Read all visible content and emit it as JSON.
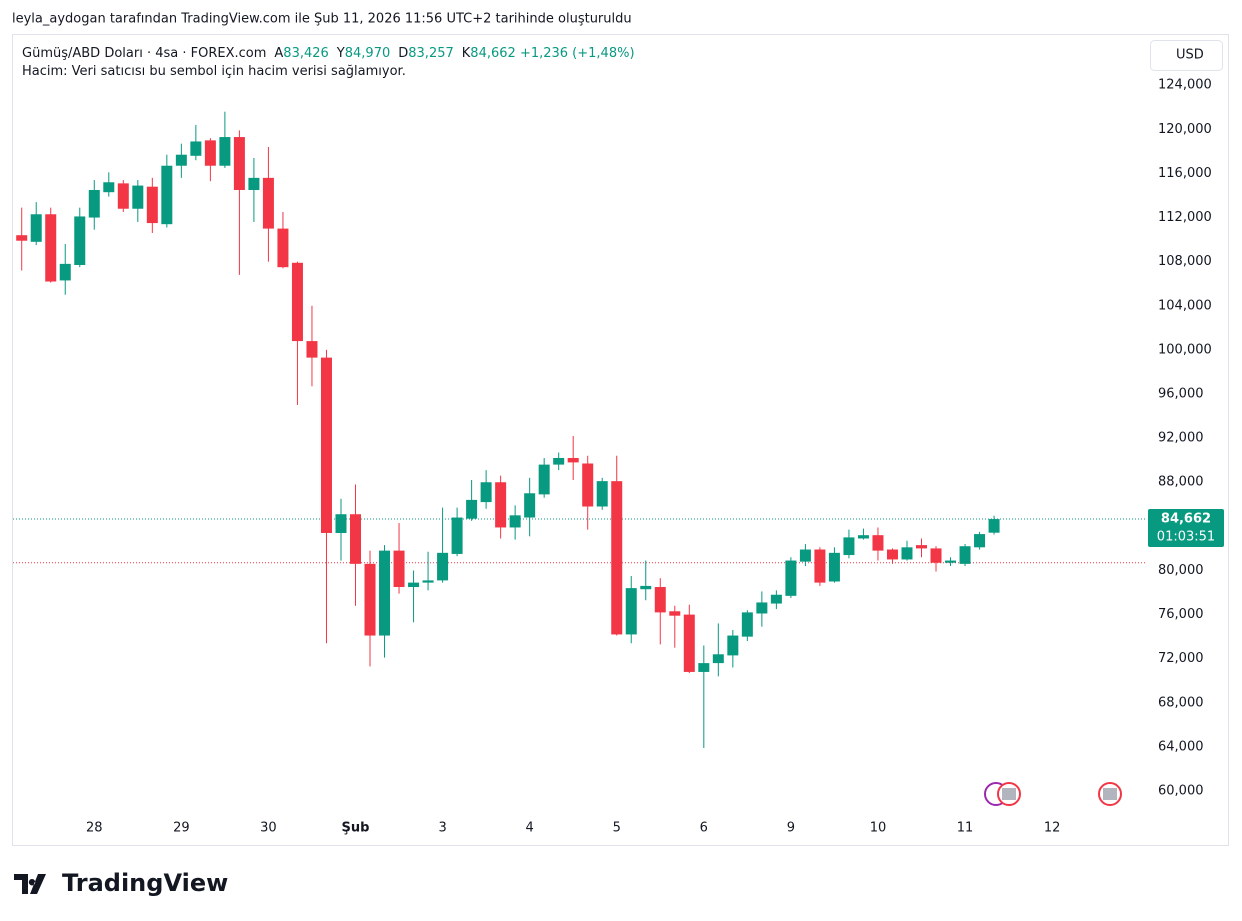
{
  "attribution": "leyla_aydogan tarafından TradingView.com ile Şub 11, 2026 11:56 UTC+2 tarihinde oluşturuldu",
  "logo": "TradingView",
  "chart_data": {
    "type": "candlestick",
    "symbol": "Gümüş/ABD Doları · 4sa · FOREX.com",
    "ohlc_legend": [
      {
        "key": "A",
        "value": "83,426"
      },
      {
        "key": "Y",
        "value": "84,970"
      },
      {
        "key": "D",
        "value": "83,257"
      },
      {
        "key": "K",
        "value": "84,662"
      }
    ],
    "change": "+1,236 (+1,48%)",
    "volume_note": "Hacim: Veri satıcısı bu sembol için hacim verisi sağlamıyor.",
    "currency": "USD",
    "price_tag": {
      "label": "84,662",
      "countdown": "01:03:51"
    },
    "up_color": "#089981",
    "down_color": "#f23645",
    "reference_line": {
      "value": 80700,
      "color": "#f23645"
    },
    "open": [
      110400,
      109800,
      112300,
      106300,
      107700,
      112000,
      114300,
      115100,
      112800,
      114800,
      111400,
      116700,
      117600,
      119000,
      116700,
      119300,
      114500,
      115600,
      111000,
      107900,
      100800,
      99300,
      83400,
      85100,
      80600,
      74100,
      81800,
      78500,
      78900,
      79100,
      81500,
      84700,
      86200,
      88000,
      83900,
      84800,
      86900,
      89600,
      90200,
      89700,
      85800,
      88100,
      74200,
      78300,
      78500,
      76300,
      76000,
      70800,
      71600,
      72300,
      74000,
      76100,
      77000,
      77700,
      80800,
      81900,
      79000,
      81400,
      82900,
      83200,
      81900,
      81000,
      82300,
      82000,
      80700,
      80600,
      82100,
      83426
    ],
    "high": [
      112900,
      113400,
      112900,
      109600,
      112900,
      115400,
      116100,
      115400,
      115400,
      115600,
      117700,
      118700,
      120400,
      119200,
      121600,
      119900,
      117400,
      118400,
      112500,
      108000,
      104000,
      100000,
      86500,
      87800,
      81800,
      82300,
      84300,
      80000,
      81700,
      85700,
      85700,
      88200,
      89100,
      88600,
      85900,
      88400,
      90200,
      90700,
      92200,
      90400,
      88400,
      90400,
      79500,
      80900,
      79300,
      76800,
      76900,
      73200,
      75200,
      74600,
      76400,
      78100,
      78200,
      81200,
      82400,
      82100,
      82100,
      83700,
      83800,
      83900,
      82000,
      82700,
      82900,
      82200,
      81200,
      82400,
      83500,
      84970
    ],
    "low": [
      107200,
      109500,
      106100,
      105000,
      107500,
      110900,
      113900,
      112500,
      111600,
      110600,
      111100,
      115600,
      117200,
      115300,
      116500,
      106800,
      111600,
      108000,
      107400,
      95000,
      96700,
      73400,
      80900,
      76800,
      71300,
      72100,
      77900,
      75300,
      78200,
      78900,
      81300,
      84500,
      85600,
      82900,
      82800,
      83100,
      86600,
      89100,
      88200,
      83700,
      85500,
      74100,
      73400,
      77300,
      73300,
      73000,
      70700,
      63900,
      70400,
      71200,
      73600,
      74900,
      76500,
      77500,
      80400,
      78600,
      78900,
      81100,
      82800,
      80900,
      80600,
      80900,
      81200,
      79900,
      80400,
      80400,
      81900,
      83257
    ],
    "close": [
      109900,
      112300,
      106200,
      107800,
      112100,
      114500,
      115200,
      112800,
      114900,
      111500,
      116700,
      117700,
      118900,
      116700,
      119300,
      114500,
      115600,
      111000,
      107500,
      100800,
      99300,
      83400,
      85100,
      80600,
      74100,
      81800,
      78500,
      78900,
      79100,
      81600,
      84800,
      86400,
      88000,
      83900,
      85000,
      87000,
      89600,
      90200,
      89800,
      85800,
      88100,
      74200,
      78400,
      78600,
      76200,
      75900,
      70800,
      71600,
      72400,
      74100,
      76200,
      77100,
      77800,
      80900,
      81900,
      78900,
      81600,
      83000,
      83200,
      81800,
      81000,
      82100,
      82000,
      80700,
      80900,
      82200,
      83300,
      84662
    ],
    "xlim": [
      -0.6,
      77.4
    ],
    "xticks": [
      {
        "value": 5,
        "label": "28"
      },
      {
        "value": 11,
        "label": "29"
      },
      {
        "value": 17,
        "label": "30"
      },
      {
        "value": 23,
        "label": "Şub"
      },
      {
        "value": 29,
        "label": "3"
      },
      {
        "value": 35,
        "label": "4"
      },
      {
        "value": 41,
        "label": "5"
      },
      {
        "value": 47,
        "label": "6"
      },
      {
        "value": 53,
        "label": "9"
      },
      {
        "value": 59,
        "label": "10"
      },
      {
        "value": 65,
        "label": "11"
      },
      {
        "value": 71,
        "label": "12"
      }
    ],
    "ylim": [
      58100,
      128100
    ],
    "yticks": [
      {
        "value": 60000,
        "label": "60,000"
      },
      {
        "value": 64000,
        "label": "64,000"
      },
      {
        "value": 68000,
        "label": "68,000"
      },
      {
        "value": 72000,
        "label": "72,000"
      },
      {
        "value": 76000,
        "label": "76,000"
      },
      {
        "value": 80000,
        "label": "80,000"
      },
      {
        "value": 84000,
        "label": "84,000"
      },
      {
        "value": 88000,
        "label": "88,000"
      },
      {
        "value": 92000,
        "label": "92,000"
      },
      {
        "value": 96000,
        "label": "96,000"
      },
      {
        "value": 100000,
        "label": "100,000"
      },
      {
        "value": 104000,
        "label": "104,000"
      },
      {
        "value": 108000,
        "label": "108,000"
      },
      {
        "value": 112000,
        "label": "112,000"
      },
      {
        "value": 116000,
        "label": "116,000"
      },
      {
        "value": 120000,
        "label": "120,000"
      },
      {
        "value": 124000,
        "label": "124,000"
      }
    ]
  }
}
